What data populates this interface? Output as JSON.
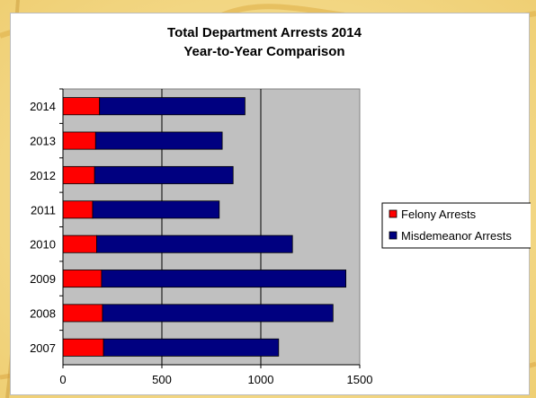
{
  "chart_data": {
    "type": "bar",
    "orientation": "horizontal",
    "stacked": true,
    "title": "Total Department Arrests 2014",
    "subtitle": "Year-to-Year Comparison",
    "categories": [
      "2014",
      "2013",
      "2012",
      "2011",
      "2010",
      "2009",
      "2008",
      "2007"
    ],
    "series": [
      {
        "name": "Felony Arrests",
        "color": "#ff0000",
        "values": [
          185,
          165,
          160,
          150,
          170,
          195,
          200,
          205
        ]
      },
      {
        "name": "Misdemeanor Arrests",
        "color": "#000080",
        "values": [
          735,
          640,
          700,
          640,
          990,
          1235,
          1165,
          885
        ]
      }
    ],
    "xlim": [
      0,
      1500
    ],
    "xticks": [
      "0",
      "500",
      "1000",
      "1500"
    ],
    "xgrid": true,
    "plot_background": "#c0c0c0",
    "legend_position": "right"
  }
}
